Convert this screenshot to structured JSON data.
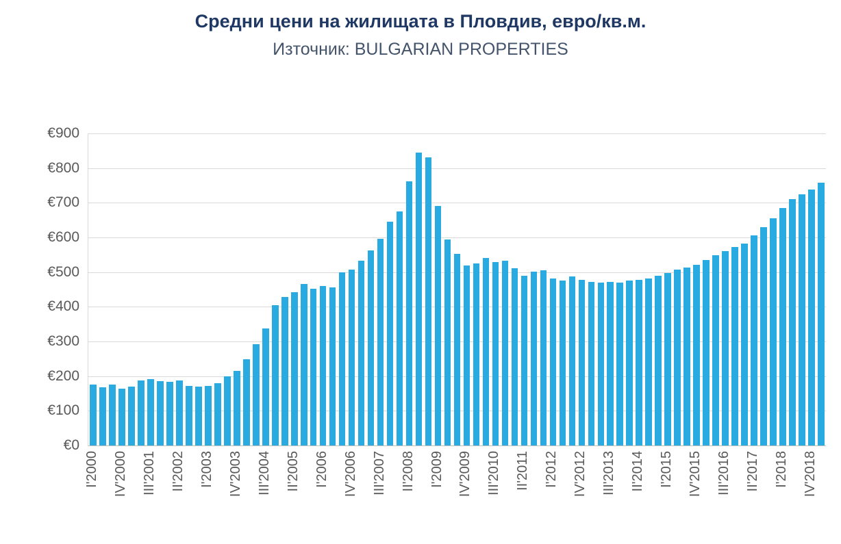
{
  "chart_data": {
    "type": "bar",
    "title": "Средни цени на жилищата в Пловдив, евро/кв.м.",
    "subtitle": "Източник: BULGARIAN PROPERTIES",
    "currency_prefix": "€",
    "bar_color": "#29ABE2",
    "grid_color": "#D9D9D9",
    "axis_text_color": "#595959",
    "title_color": "#1F3864",
    "grid": true,
    "legend_position": "none",
    "ylim": [
      0,
      900
    ],
    "y_tick_step": 100,
    "y_ticks": [
      "€0",
      "€100",
      "€200",
      "€300",
      "€400",
      "€500",
      "€600",
      "€700",
      "€800",
      "€900"
    ],
    "x_tick_every": 3,
    "x_ticks_shown": [
      "I'2000",
      "IV'2000",
      "III'2001",
      "II'2002",
      "I'2003",
      "IV'2003",
      "III'2004",
      "II'2005",
      "I'2006",
      "IV'2006",
      "III'2007",
      "II'2008",
      "I'2009",
      "IV'2009",
      "III'2010",
      "II'2011",
      "I'2012",
      "IV'2012",
      "III'2013",
      "II'2014",
      "I'2015",
      "IV'2015",
      "III'2016",
      "II'2017",
      "I'2018",
      "IV'2018"
    ],
    "categories": [
      "I'2000",
      "II'2000",
      "III'2000",
      "IV'2000",
      "I'2001",
      "II'2001",
      "III'2001",
      "IV'2001",
      "I'2002",
      "II'2002",
      "III'2002",
      "IV'2002",
      "I'2003",
      "II'2003",
      "III'2003",
      "IV'2003",
      "I'2004",
      "II'2004",
      "III'2004",
      "IV'2004",
      "I'2005",
      "II'2005",
      "III'2005",
      "IV'2005",
      "I'2006",
      "II'2006",
      "III'2006",
      "IV'2006",
      "I'2007",
      "II'2007",
      "III'2007",
      "IV'2007",
      "I'2008",
      "II'2008",
      "III'2008",
      "IV'2008",
      "I'2009",
      "II'2009",
      "III'2009",
      "IV'2009",
      "I'2010",
      "II'2010",
      "III'2010",
      "IV'2010",
      "I'2011",
      "II'2011",
      "III'2011",
      "IV'2011",
      "I'2012",
      "II'2012",
      "III'2012",
      "IV'2012",
      "I'2013",
      "II'2013",
      "III'2013",
      "IV'2013",
      "I'2014",
      "II'2014",
      "III'2014",
      "IV'2014",
      "I'2015",
      "II'2015",
      "III'2015",
      "IV'2015",
      "I'2016",
      "II'2016",
      "III'2016",
      "IV'2016",
      "I'2017",
      "II'2017",
      "III'2017",
      "IV'2017",
      "I'2018",
      "II'2018",
      "III'2018",
      "IV'2018",
      "I'2019"
    ],
    "values": [
      175,
      168,
      175,
      163,
      170,
      188,
      192,
      186,
      183,
      188,
      172,
      170,
      172,
      180,
      200,
      215,
      248,
      292,
      338,
      405,
      428,
      442,
      465,
      452,
      460,
      455,
      500,
      507,
      532,
      562,
      596,
      646,
      676,
      762,
      845,
      830,
      690,
      595,
      552,
      520,
      525,
      540,
      528,
      532,
      512,
      490,
      502,
      505,
      482,
      475,
      487,
      478,
      472,
      470,
      472,
      470,
      475,
      478,
      482,
      490,
      497,
      507,
      513,
      522,
      535,
      548,
      560,
      572,
      582,
      605,
      630,
      655,
      685,
      710,
      725,
      738,
      758
    ]
  }
}
